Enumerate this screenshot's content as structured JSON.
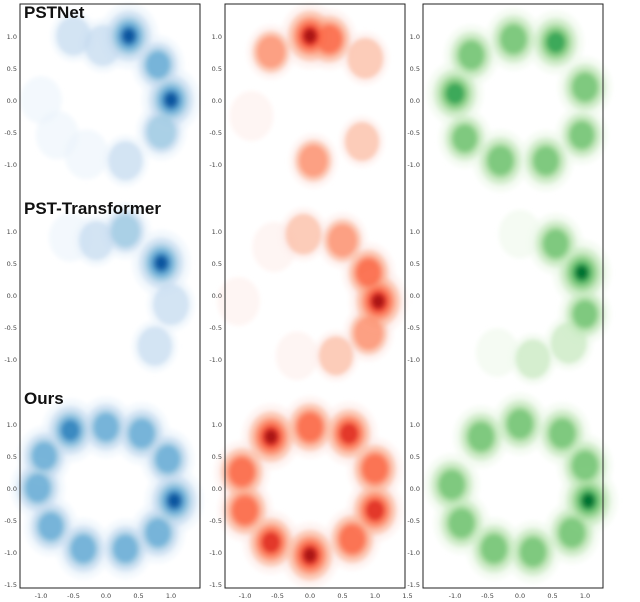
{
  "chart_data": {
    "type": "heatmap",
    "description_kind": "2D kernel density estimates on a 3x3 grid",
    "rows": [
      {
        "label": "PSTNet"
      },
      {
        "label": "PST-Transformer"
      },
      {
        "label": "Ours"
      }
    ],
    "columns": [
      {
        "colormap": "Blues",
        "colors": [
          "#eaf3fb",
          "#c6dbef",
          "#9ecae1",
          "#6baed6",
          "#3182bd",
          "#08519c"
        ]
      },
      {
        "colormap": "Reds",
        "colors": [
          "#fdecea",
          "#fcbba1",
          "#fc9272",
          "#fb6a4a",
          "#de2d26",
          "#a50f15"
        ]
      },
      {
        "colormap": "Greens",
        "colors": [
          "#edf8e9",
          "#c7e9c0",
          "#a1d99b",
          "#74c476",
          "#31a354",
          "#006d2c"
        ]
      }
    ],
    "xticks": [
      "-1.0",
      "-0.5",
      "0.0",
      "0.5",
      "1.0",
      "1.5"
    ],
    "xticks_first_col": [
      "-1.0",
      "-0.5",
      "0.0",
      "0.5",
      "1.0"
    ],
    "yticks_top_rows": [
      "1.0",
      "0.5",
      "0.0",
      "-0.5",
      "-1.0"
    ],
    "yticks_bottom_row": [
      "1.0",
      "0.5",
      "0.0",
      "-0.5",
      "-1.0",
      "-1.5"
    ],
    "xlim": [
      -1.5,
      1.5
    ],
    "ylim": [
      -1.5,
      1.5
    ],
    "grid": false,
    "densities": [
      [
        {
          "points": [
            [
              0.35,
              1.0,
              1.0
            ],
            [
              1.0,
              0.0,
              1.0
            ],
            [
              0.8,
              0.55,
              0.7
            ],
            [
              0.85,
              -0.5,
              0.6
            ],
            [
              0.3,
              -0.95,
              0.4
            ],
            [
              -0.3,
              -0.85,
              0.35
            ],
            [
              -0.75,
              -0.55,
              0.3
            ],
            [
              -1.0,
              0.0,
              0.25
            ],
            [
              -0.5,
              1.0,
              0.4
            ],
            [
              -0.05,
              0.85,
              0.5
            ]
          ]
        },
        {
          "points": [
            [
              0.0,
              1.0,
              1.0
            ],
            [
              0.3,
              0.95,
              0.8
            ],
            [
              -0.6,
              0.75,
              0.55
            ],
            [
              0.85,
              0.65,
              0.5
            ],
            [
              -0.9,
              -0.25,
              0.35
            ],
            [
              0.8,
              -0.65,
              0.4
            ],
            [
              0.05,
              -0.95,
              0.55
            ]
          ]
        },
        {
          "points": [
            [
              -1.0,
              0.1,
              0.9
            ],
            [
              -0.75,
              0.7,
              0.8
            ],
            [
              -0.1,
              0.95,
              0.85
            ],
            [
              0.55,
              0.9,
              0.9
            ],
            [
              1.0,
              0.2,
              0.8
            ],
            [
              0.95,
              -0.55,
              0.7
            ],
            [
              0.4,
              -0.95,
              0.8
            ],
            [
              -0.3,
              -0.95,
              0.85
            ],
            [
              -0.85,
              -0.6,
              0.7
            ]
          ]
        }
      ],
      [
        {
          "points": [
            [
              0.3,
              1.0,
              0.6
            ],
            [
              0.85,
              0.5,
              1.0
            ],
            [
              1.0,
              -0.15,
              0.5
            ],
            [
              0.75,
              -0.8,
              0.4
            ],
            [
              -0.15,
              0.85,
              0.4
            ],
            [
              -0.55,
              0.9,
              0.3
            ],
            [
              -0.95,
              0.5,
              0.2
            ],
            [
              -1.0,
              -0.3,
              0.2
            ],
            [
              -0.5,
              -0.95,
              0.2
            ],
            [
              0.15,
              -0.95,
              0.2
            ]
          ]
        },
        {
          "points": [
            [
              -0.1,
              0.95,
              0.5
            ],
            [
              0.5,
              0.85,
              0.6
            ],
            [
              0.9,
              0.35,
              0.75
            ],
            [
              1.05,
              -0.1,
              1.0
            ],
            [
              0.9,
              -0.6,
              0.6
            ],
            [
              0.4,
              -0.95,
              0.4
            ],
            [
              -0.2,
              -0.95,
              0.3
            ],
            [
              -1.1,
              -0.1,
              0.3
            ],
            [
              -0.55,
              0.75,
              0.35
            ]
          ]
        },
        {
          "points": [
            [
              0.55,
              0.8,
              0.8
            ],
            [
              0.95,
              0.35,
              1.0
            ],
            [
              1.0,
              -0.3,
              0.7
            ],
            [
              0.75,
              -0.75,
              0.5
            ],
            [
              0.2,
              -1.0,
              0.4
            ],
            [
              -0.35,
              -0.9,
              0.3
            ],
            [
              -0.85,
              -0.5,
              0.2
            ],
            [
              -0.95,
              0.2,
              0.2
            ],
            [
              -0.6,
              0.75,
              0.2
            ],
            [
              0.0,
              0.95,
              0.3
            ]
          ]
        }
      ],
      [
        {
          "points": [
            [
              -0.55,
              0.9,
              0.9
            ],
            [
              0.0,
              0.95,
              0.8
            ],
            [
              0.55,
              0.85,
              0.85
            ],
            [
              0.95,
              0.45,
              0.75
            ],
            [
              1.05,
              -0.2,
              1.0
            ],
            [
              0.8,
              -0.7,
              0.8
            ],
            [
              0.3,
              -0.95,
              0.75
            ],
            [
              -0.35,
              -0.95,
              0.8
            ],
            [
              -0.85,
              -0.6,
              0.75
            ],
            [
              -1.05,
              0.0,
              0.8
            ],
            [
              -0.95,
              0.5,
              0.75
            ]
          ]
        },
        {
          "points": [
            [
              -0.6,
              0.8,
              1.0
            ],
            [
              0.0,
              0.95,
              0.85
            ],
            [
              0.6,
              0.85,
              0.9
            ],
            [
              1.0,
              0.3,
              0.85
            ],
            [
              1.0,
              -0.35,
              0.9
            ],
            [
              0.65,
              -0.8,
              0.85
            ],
            [
              0.0,
              -1.05,
              1.0
            ],
            [
              -0.6,
              -0.85,
              0.9
            ],
            [
              -1.0,
              -0.35,
              0.85
            ],
            [
              -1.05,
              0.25,
              0.85
            ]
          ]
        },
        {
          "points": [
            [
              -0.6,
              0.8,
              0.85
            ],
            [
              0.0,
              1.0,
              0.85
            ],
            [
              0.65,
              0.85,
              0.85
            ],
            [
              1.0,
              0.35,
              0.85
            ],
            [
              1.05,
              -0.2,
              1.0
            ],
            [
              0.8,
              -0.7,
              0.85
            ],
            [
              0.2,
              -1.0,
              0.85
            ],
            [
              -0.4,
              -0.95,
              0.85
            ],
            [
              -0.9,
              -0.55,
              0.85
            ],
            [
              -1.05,
              0.05,
              0.85
            ]
          ]
        }
      ]
    ]
  }
}
